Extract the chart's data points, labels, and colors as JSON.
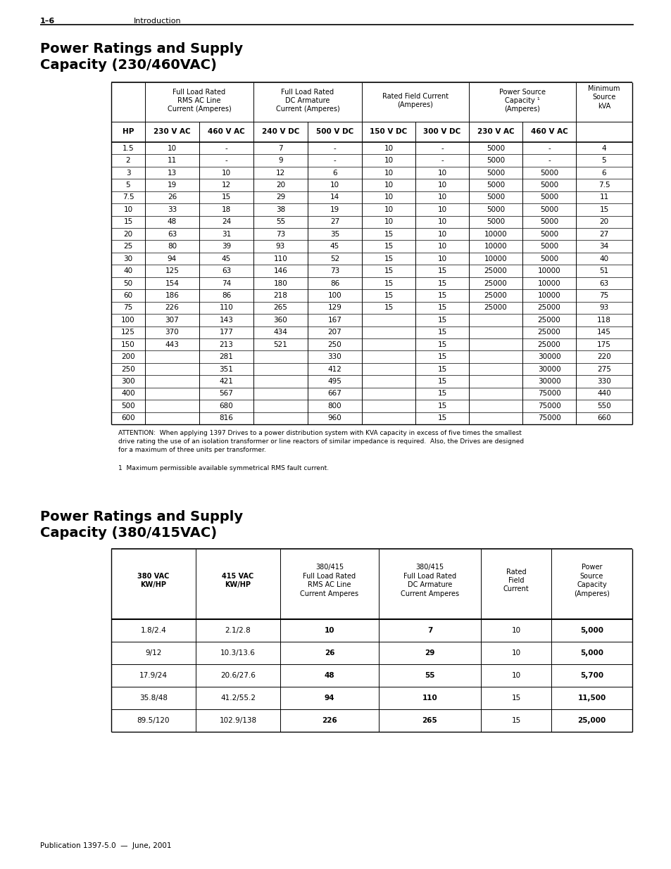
{
  "page_header_left": "1–6",
  "page_header_right": "Introduction",
  "section1_title": "Power Ratings and Supply\nCapacity (230/460VAC)",
  "section2_title": "Power Ratings and Supply\nCapacity (380/415VAC)",
  "footer": "Publication 1397-5.0  —  June, 2001",
  "table1_data": [
    [
      "1.5",
      "10",
      "-",
      "7",
      "-",
      "10",
      "-",
      "5000",
      "-",
      "4"
    ],
    [
      "2",
      "11",
      "-",
      "9",
      "-",
      "10",
      "-",
      "5000",
      "-",
      "5"
    ],
    [
      "3",
      "13",
      "10",
      "12",
      "6",
      "10",
      "10",
      "5000",
      "5000",
      "6"
    ],
    [
      "5",
      "19",
      "12",
      "20",
      "10",
      "10",
      "10",
      "5000",
      "5000",
      "7.5"
    ],
    [
      "7.5",
      "26",
      "15",
      "29",
      "14",
      "10",
      "10",
      "5000",
      "5000",
      "11"
    ],
    [
      "10",
      "33",
      "18",
      "38",
      "19",
      "10",
      "10",
      "5000",
      "5000",
      "15"
    ],
    [
      "15",
      "48",
      "24",
      "55",
      "27",
      "10",
      "10",
      "5000",
      "5000",
      "20"
    ],
    [
      "20",
      "63",
      "31",
      "73",
      "35",
      "15",
      "10",
      "10000",
      "5000",
      "27"
    ],
    [
      "25",
      "80",
      "39",
      "93",
      "45",
      "15",
      "10",
      "10000",
      "5000",
      "34"
    ],
    [
      "30",
      "94",
      "45",
      "110",
      "52",
      "15",
      "10",
      "10000",
      "5000",
      "40"
    ],
    [
      "40",
      "125",
      "63",
      "146",
      "73",
      "15",
      "15",
      "25000",
      "10000",
      "51"
    ],
    [
      "50",
      "154",
      "74",
      "180",
      "86",
      "15",
      "15",
      "25000",
      "10000",
      "63"
    ],
    [
      "60",
      "186",
      "86",
      "218",
      "100",
      "15",
      "15",
      "25000",
      "10000",
      "75"
    ],
    [
      "75",
      "226",
      "110",
      "265",
      "129",
      "15",
      "15",
      "25000",
      "25000",
      "93"
    ],
    [
      "100",
      "307",
      "143",
      "360",
      "167",
      "",
      "15",
      "",
      "25000",
      "118"
    ],
    [
      "125",
      "370",
      "177",
      "434",
      "207",
      "",
      "15",
      "",
      "25000",
      "145"
    ],
    [
      "150",
      "443",
      "213",
      "521",
      "250",
      "",
      "15",
      "",
      "25000",
      "175"
    ],
    [
      "200",
      "",
      "281",
      "",
      "330",
      "",
      "15",
      "",
      "30000",
      "220"
    ],
    [
      "250",
      "",
      "351",
      "",
      "412",
      "",
      "15",
      "",
      "30000",
      "275"
    ],
    [
      "300",
      "",
      "421",
      "",
      "495",
      "",
      "15",
      "",
      "30000",
      "330"
    ],
    [
      "400",
      "",
      "567",
      "",
      "667",
      "",
      "15",
      "",
      "75000",
      "440"
    ],
    [
      "500",
      "",
      "680",
      "",
      "800",
      "",
      "15",
      "",
      "75000",
      "550"
    ],
    [
      "600",
      "",
      "816",
      "",
      "960",
      "",
      "15",
      "",
      "75000",
      "660"
    ]
  ],
  "attention_text": "ATTENTION:  When applying 1397 Drives to a power distribution system with KVA capacity in excess of five times the smallest\ndrive rating the use of an isolation transformer or line reactors of similar impedance is required.  Also, the Drives are designed\nfor a maximum of three units per transformer.",
  "footnote1": "1  Maximum permissible available symmetrical RMS fault current.",
  "table2_data": [
    [
      "1.8/2.4",
      "2.1/2.8",
      "10",
      "7",
      "10",
      "5,000"
    ],
    [
      "9/12",
      "10.3/13.6",
      "26",
      "29",
      "10",
      "5,000"
    ],
    [
      "17.9/24",
      "20.6/27.6",
      "48",
      "55",
      "10",
      "5,700"
    ],
    [
      "35.8/48",
      "41.2/55.2",
      "94",
      "110",
      "15",
      "11,500"
    ],
    [
      "89.5/120",
      "102.9/138",
      "226",
      "265",
      "15",
      "25,000"
    ]
  ],
  "bg_color": "#ffffff"
}
